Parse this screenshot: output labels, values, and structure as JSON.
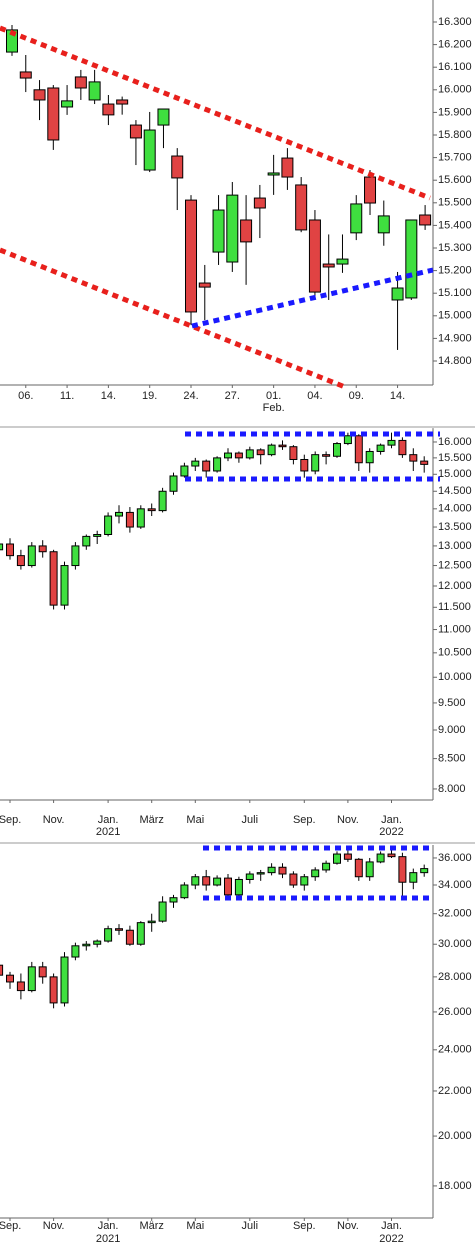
{
  "chart_data": [
    {
      "type": "candlestick",
      "log": false,
      "up_color": "#3fdf3f",
      "down_color": "#e04343",
      "categories": [
        null,
        "06.",
        null,
        null,
        "11.",
        null,
        null,
        "14.",
        null,
        null,
        "19.",
        null,
        null,
        "24.",
        null,
        null,
        "27.",
        null,
        null,
        [
          "01.",
          "Feb."
        ],
        null,
        null,
        "04.",
        null,
        null,
        "09.",
        null,
        null,
        "14.",
        null,
        null
      ],
      "open": [
        16167,
        16079,
        16000,
        16008,
        15924,
        16057,
        15955,
        15937,
        15955,
        15844,
        15645,
        15844,
        15707,
        15512,
        15145,
        15282,
        15238,
        15424,
        15521,
        15623,
        15698,
        15579,
        15424,
        15229,
        15229,
        15367,
        15614,
        15367,
        15070,
        15079,
        15446
      ],
      "high": [
        16287,
        16154,
        16043,
        16021,
        16021,
        16088,
        16088,
        15977,
        15970,
        15866,
        15902,
        15915,
        15742,
        15534,
        15225,
        15534,
        15592,
        15534,
        15579,
        15712,
        15742,
        15614,
        15468,
        15360,
        15360,
        15534,
        15645,
        15510,
        15194,
        15424,
        15490
      ],
      "low": [
        16150,
        15990,
        15866,
        15734,
        15889,
        15955,
        15937,
        15844,
        15890,
        15667,
        15636,
        15742,
        15468,
        14959,
        14981,
        15225,
        15194,
        15137,
        15344,
        15535,
        15557,
        15370,
        15070,
        15070,
        15190,
        15335,
        15446,
        15310,
        14849,
        15070,
        15380
      ],
      "close": [
        16265,
        16052,
        15955,
        15778,
        15951,
        16008,
        16035,
        15889,
        15937,
        15787,
        15822,
        15915,
        15610,
        15017,
        15127,
        15468,
        15534,
        15327,
        15477,
        15632,
        15614,
        15380,
        15105,
        15216,
        15251,
        15495,
        15499,
        15442,
        15123,
        15424,
        15402
      ],
      "ylim": [
        14700,
        16400
      ],
      "yticks": [
        {
          "value": 14800,
          "label": "14.800"
        },
        {
          "value": 14900,
          "label": "14.900"
        },
        {
          "value": 15000,
          "label": "15.000"
        },
        {
          "value": 15100,
          "label": "15.100"
        },
        {
          "value": 15200,
          "label": "15.200"
        },
        {
          "value": 15300,
          "label": "15.300"
        },
        {
          "value": 15400,
          "label": "15.400"
        },
        {
          "value": 15500,
          "label": "15.500"
        },
        {
          "value": 15600,
          "label": "15.600"
        },
        {
          "value": 15700,
          "label": "15.700"
        },
        {
          "value": 15800,
          "label": "15.800"
        },
        {
          "value": 15900,
          "label": "15.900"
        },
        {
          "value": 16000,
          "label": "16.000"
        },
        {
          "value": 16100,
          "label": "16.100"
        },
        {
          "value": 16200,
          "label": "16.200"
        },
        {
          "value": 16300,
          "label": "16.300"
        }
      ]
    },
    {
      "type": "candlestick",
      "log": true,
      "up_color": "#3fdf3f",
      "down_color": "#e04343",
      "categories": [
        null,
        "Sep.",
        null,
        null,
        null,
        "Nov.",
        null,
        null,
        null,
        null,
        [
          "Jan.",
          "2021"
        ],
        null,
        null,
        null,
        "März",
        null,
        null,
        null,
        "Mai",
        null,
        null,
        null,
        null,
        "Juli",
        null,
        null,
        null,
        null,
        "Sep.",
        null,
        null,
        null,
        "Nov.",
        null,
        null,
        null,
        [
          "Jan.",
          "2022"
        ],
        null,
        null,
        null
      ],
      "open": [
        12900,
        13050,
        12750,
        12500,
        13000,
        12850,
        11550,
        12500,
        13000,
        13250,
        13300,
        13800,
        13900,
        13500,
        14000,
        13950,
        14500,
        14950,
        15250,
        15400,
        15100,
        15500,
        15650,
        15500,
        15750,
        15600,
        15900,
        15850,
        15450,
        15100,
        15600,
        15550,
        15950,
        16200,
        15350,
        15700,
        15900,
        16050,
        15600,
        15400
      ],
      "high": [
        13150,
        13200,
        12900,
        13100,
        13150,
        12900,
        12600,
        13100,
        13300,
        13400,
        13900,
        14100,
        14050,
        14100,
        14150,
        14600,
        15050,
        15350,
        15500,
        15450,
        15550,
        15800,
        15700,
        15850,
        15800,
        15950,
        16050,
        15900,
        15600,
        15700,
        15700,
        16000,
        16300,
        16250,
        15800,
        15950,
        16300,
        16150,
        15800,
        15550
      ],
      "low": [
        12800,
        12650,
        12400,
        12450,
        12700,
        11450,
        11450,
        12400,
        12900,
        13050,
        13250,
        13600,
        13350,
        13450,
        13800,
        13900,
        14400,
        14900,
        15100,
        14900,
        15050,
        15400,
        15350,
        15450,
        15300,
        15550,
        15750,
        15300,
        14900,
        15000,
        15300,
        15500,
        15900,
        15100,
        15050,
        15600,
        15800,
        15500,
        15100,
        15050
      ],
      "close": [
        13050,
        12750,
        12500,
        13000,
        12850,
        11550,
        12500,
        13000,
        13250,
        13300,
        13800,
        13900,
        13500,
        14000,
        13950,
        14500,
        14950,
        15250,
        15400,
        15100,
        15500,
        15650,
        15500,
        15750,
        15600,
        15900,
        15850,
        15450,
        15100,
        15600,
        15550,
        15950,
        16200,
        15350,
        15700,
        15900,
        16050,
        15600,
        15400,
        15300
      ],
      "ylim": [
        7830,
        16450
      ],
      "yticks": [
        {
          "value": 8000,
          "label": "8.000"
        },
        {
          "value": 8500,
          "label": "8.500"
        },
        {
          "value": 9000,
          "label": "9.000"
        },
        {
          "value": 9500,
          "label": "9.500"
        },
        {
          "value": 10000,
          "label": "10.000"
        },
        {
          "value": 10500,
          "label": "10.500"
        },
        {
          "value": 11000,
          "label": "11.000"
        },
        {
          "value": 11500,
          "label": "11.500"
        },
        {
          "value": 12000,
          "label": "12.000"
        },
        {
          "value": 12500,
          "label": "12.500"
        },
        {
          "value": 13000,
          "label": "13.000"
        },
        {
          "value": 13500,
          "label": "13.500"
        },
        {
          "value": 14000,
          "label": "14.000"
        },
        {
          "value": 14500,
          "label": "14.500"
        },
        {
          "value": 15000,
          "label": "15.000"
        },
        {
          "value": 15500,
          "label": "15.500"
        },
        {
          "value": 16000,
          "label": "16.000"
        }
      ]
    },
    {
      "type": "candlestick",
      "log": true,
      "up_color": "#3fdf3f",
      "down_color": "#e04343",
      "categories": [
        null,
        "Sep.",
        null,
        null,
        null,
        "Nov.",
        null,
        null,
        null,
        null,
        [
          "Jan.",
          "2021"
        ],
        null,
        null,
        null,
        "März",
        null,
        null,
        null,
        "Mai",
        null,
        null,
        null,
        null,
        "Juli",
        null,
        null,
        null,
        null,
        "Sep.",
        null,
        null,
        null,
        "Nov.",
        null,
        null,
        null,
        [
          "Jan.",
          "2022"
        ],
        null,
        null,
        null
      ],
      "open": [
        28700,
        28100,
        27700,
        27200,
        28600,
        28000,
        26500,
        29200,
        29900,
        30000,
        30200,
        31000,
        30900,
        30000,
        31400,
        31500,
        32800,
        33100,
        34000,
        34600,
        34000,
        34500,
        33300,
        34400,
        34800,
        34900,
        35300,
        34800,
        34000,
        34600,
        35100,
        35600,
        36300,
        35900,
        34600,
        35700,
        36300,
        36100,
        34200,
        34900
      ],
      "high": [
        29100,
        28300,
        28200,
        28900,
        28900,
        28200,
        29500,
        30100,
        30200,
        30300,
        31200,
        31300,
        31200,
        31500,
        32000,
        33200,
        33300,
        34200,
        34800,
        35100,
        34700,
        34800,
        34600,
        35000,
        35100,
        35600,
        35600,
        35000,
        34800,
        35300,
        35800,
        36500,
        36600,
        36000,
        36000,
        36500,
        36900,
        36400,
        35200,
        35500
      ],
      "low": [
        27900,
        27300,
        26700,
        27100,
        27600,
        26200,
        26300,
        29000,
        29600,
        29800,
        30100,
        30600,
        29900,
        29900,
        30800,
        31400,
        32400,
        33000,
        33700,
        33600,
        33900,
        33000,
        33200,
        34100,
        34300,
        34700,
        34500,
        33800,
        33600,
        34300,
        34900,
        35500,
        35700,
        34300,
        34300,
        35600,
        36000,
        33200,
        33700,
        34600
      ],
      "close": [
        28100,
        27700,
        27200,
        28600,
        28000,
        26500,
        29200,
        29900,
        30000,
        30200,
        31000,
        30900,
        30000,
        31400,
        31500,
        32800,
        33100,
        34000,
        34600,
        34000,
        34500,
        33300,
        34400,
        34800,
        34900,
        35300,
        34800,
        34000,
        34600,
        35100,
        35600,
        36300,
        35900,
        34600,
        35700,
        36300,
        36100,
        34200,
        34900,
        35200
      ],
      "ylim": [
        16820,
        37000
      ],
      "yticks": [
        {
          "value": 18000,
          "label": "18.000"
        },
        {
          "value": 20000,
          "label": "20.000"
        },
        {
          "value": 22000,
          "label": "22.000"
        },
        {
          "value": 24000,
          "label": "24.000"
        },
        {
          "value": 26000,
          "label": "26.000"
        },
        {
          "value": 28000,
          "label": "28.000"
        },
        {
          "value": 30000,
          "label": "30.000"
        },
        {
          "value": 32000,
          "label": "32.000"
        },
        {
          "value": 34000,
          "label": "34.000"
        },
        {
          "value": 36000,
          "label": "36.000"
        }
      ]
    }
  ]
}
